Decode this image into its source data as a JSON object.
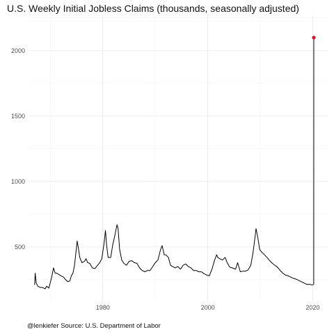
{
  "chart_data": {
    "type": "line",
    "title": "U.S. Weekly Initial Jobless Claims (thousands, seasonally adjusted)",
    "caption": "@lenkiefer Source: U.S. Department of Labor",
    "xlabel": "",
    "ylabel": "",
    "xlim": [
      1965.7,
      2023.0
    ],
    "ylim": [
      90,
      2270
    ],
    "x_ticks": [
      1980,
      2000,
      2020
    ],
    "y_ticks": [
      500,
      1000,
      1500,
      2000
    ],
    "grid": true,
    "legend": "none",
    "series": [
      {
        "points": [
          [
            1967.0,
            210
          ],
          [
            1967.1,
            300
          ],
          [
            1967.3,
            225
          ],
          [
            1967.6,
            200
          ],
          [
            1968.0,
            192
          ],
          [
            1968.5,
            190
          ],
          [
            1969.0,
            180
          ],
          [
            1969.3,
            200
          ],
          [
            1969.7,
            185
          ],
          [
            1970.0,
            230
          ],
          [
            1970.3,
            280
          ],
          [
            1970.6,
            340
          ],
          [
            1970.9,
            300
          ],
          [
            1971.2,
            300
          ],
          [
            1971.6,
            290
          ],
          [
            1972.0,
            280
          ],
          [
            1972.5,
            270
          ],
          [
            1972.9,
            250
          ],
          [
            1973.3,
            235
          ],
          [
            1973.7,
            240
          ],
          [
            1974.0,
            280
          ],
          [
            1974.3,
            300
          ],
          [
            1974.6,
            360
          ],
          [
            1974.9,
            470
          ],
          [
            1975.1,
            545
          ],
          [
            1975.3,
            500
          ],
          [
            1975.6,
            420
          ],
          [
            1976.0,
            380
          ],
          [
            1976.5,
            390
          ],
          [
            1976.8,
            410
          ],
          [
            1977.1,
            380
          ],
          [
            1977.5,
            375
          ],
          [
            1978.0,
            340
          ],
          [
            1978.5,
            335
          ],
          [
            1979.0,
            360
          ],
          [
            1979.4,
            380
          ],
          [
            1979.8,
            410
          ],
          [
            1980.2,
            520
          ],
          [
            1980.5,
            625
          ],
          [
            1980.7,
            520
          ],
          [
            1981.0,
            420
          ],
          [
            1981.5,
            420
          ],
          [
            1981.9,
            520
          ],
          [
            1982.3,
            590
          ],
          [
            1982.7,
            670
          ],
          [
            1982.9,
            640
          ],
          [
            1983.2,
            480
          ],
          [
            1983.6,
            400
          ],
          [
            1984.0,
            375
          ],
          [
            1984.5,
            360
          ],
          [
            1985.0,
            390
          ],
          [
            1985.5,
            395
          ],
          [
            1986.0,
            380
          ],
          [
            1986.5,
            375
          ],
          [
            1987.0,
            340
          ],
          [
            1987.5,
            320
          ],
          [
            1988.0,
            310
          ],
          [
            1988.5,
            320
          ],
          [
            1989.0,
            320
          ],
          [
            1989.5,
            350
          ],
          [
            1990.0,
            380
          ],
          [
            1990.5,
            400
          ],
          [
            1991.0,
            480
          ],
          [
            1991.3,
            510
          ],
          [
            1991.7,
            440
          ],
          [
            1992.0,
            440
          ],
          [
            1992.5,
            420
          ],
          [
            1992.9,
            360
          ],
          [
            1993.3,
            350
          ],
          [
            1993.8,
            340
          ],
          [
            1994.3,
            350
          ],
          [
            1994.8,
            330
          ],
          [
            1995.3,
            360
          ],
          [
            1995.8,
            370
          ],
          [
            1996.3,
            350
          ],
          [
            1996.8,
            340
          ],
          [
            1997.3,
            320
          ],
          [
            1997.8,
            320
          ],
          [
            1998.3,
            310
          ],
          [
            1998.8,
            310
          ],
          [
            1999.3,
            295
          ],
          [
            1999.8,
            285
          ],
          [
            2000.3,
            280
          ],
          [
            2000.8,
            330
          ],
          [
            2001.3,
            400
          ],
          [
            2001.7,
            440
          ],
          [
            2001.9,
            420
          ],
          [
            2002.3,
            410
          ],
          [
            2002.8,
            400
          ],
          [
            2003.3,
            420
          ],
          [
            2003.7,
            380
          ],
          [
            2004.2,
            345
          ],
          [
            2004.7,
            340
          ],
          [
            2005.3,
            330
          ],
          [
            2005.7,
            380
          ],
          [
            2006.2,
            310
          ],
          [
            2006.7,
            315
          ],
          [
            2007.2,
            315
          ],
          [
            2007.7,
            325
          ],
          [
            2008.2,
            360
          ],
          [
            2008.6,
            450
          ],
          [
            2008.9,
            540
          ],
          [
            2009.2,
            640
          ],
          [
            2009.5,
            580
          ],
          [
            2009.9,
            480
          ],
          [
            2010.3,
            460
          ],
          [
            2010.8,
            440
          ],
          [
            2011.3,
            420
          ],
          [
            2011.8,
            395
          ],
          [
            2012.3,
            375
          ],
          [
            2012.8,
            360
          ],
          [
            2013.3,
            345
          ],
          [
            2013.8,
            320
          ],
          [
            2014.3,
            300
          ],
          [
            2014.8,
            285
          ],
          [
            2015.3,
            280
          ],
          [
            2015.8,
            270
          ],
          [
            2016.3,
            260
          ],
          [
            2016.8,
            255
          ],
          [
            2017.3,
            245
          ],
          [
            2017.8,
            235
          ],
          [
            2018.3,
            225
          ],
          [
            2018.8,
            215
          ],
          [
            2019.3,
            215
          ],
          [
            2019.8,
            210
          ],
          [
            2020.1,
            212
          ],
          [
            2020.2,
            215
          ],
          [
            2020.21,
            2100
          ]
        ],
        "color": "#000000"
      }
    ],
    "highlight_point": {
      "x": 2020.21,
      "y": 2100,
      "color": "#e0102e"
    }
  }
}
